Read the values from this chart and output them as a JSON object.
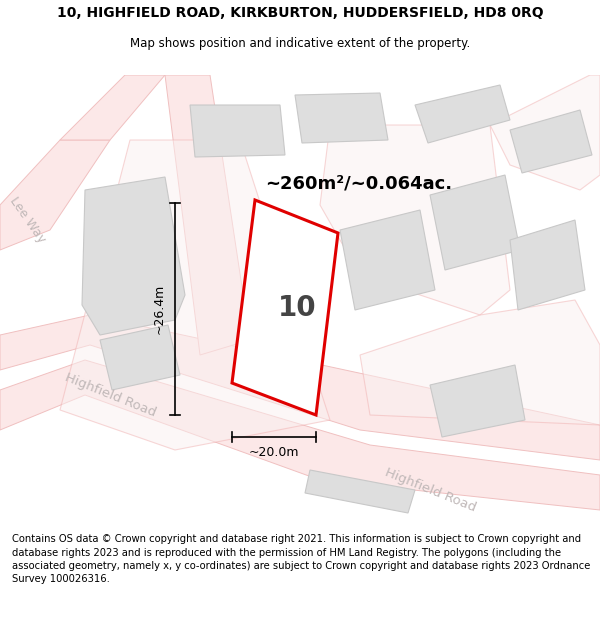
{
  "title_line1": "10, HIGHFIELD ROAD, KIRKBURTON, HUDDERSFIELD, HD8 0RQ",
  "title_line2": "Map shows position and indicative extent of the property.",
  "area_label": "~260m²/~0.064ac.",
  "width_label": "~20.0m",
  "height_label": "~26.4m",
  "number_label": "10",
  "road_label1": "Lee Way",
  "road_label2": "Highfield Road",
  "road_label3": "Highfield Road",
  "footer": "Contains OS data © Crown copyright and database right 2021. This information is subject to Crown copyright and database rights 2023 and is reproduced with the permission of HM Land Registry. The polygons (including the associated geometry, namely x, y co-ordinates) are subject to Crown copyright and database rights 2023 Ordnance Survey 100026316.",
  "bg_color": "#ffffff",
  "map_bg": "#f7f4f4",
  "building_fill": "#dedede",
  "building_edge": "#c8c8c8",
  "road_fill_color": "#ffffff",
  "road_stroke": "#f0c0c0",
  "road_area_fill": "#fce8e8",
  "highlight_stroke": "#e00000",
  "highlight_fill": "#ffffff",
  "lot_fill": "#faf0f0",
  "lot_stroke": "#f0b0b0",
  "dim_color": "#000000",
  "road_text_color": "#c0b8b8",
  "title_fontsize": 10,
  "footer_fontsize": 7.2
}
